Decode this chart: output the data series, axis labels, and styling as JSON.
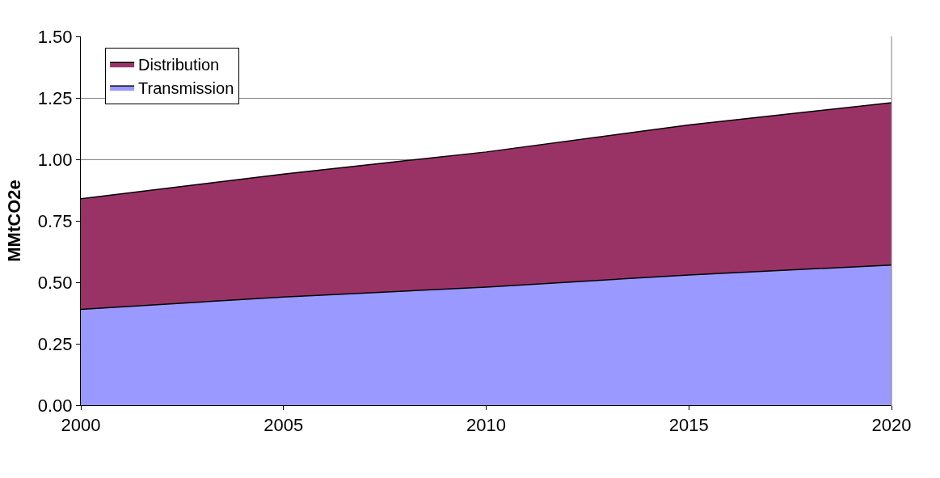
{
  "chart_data": {
    "type": "area",
    "stacked": true,
    "ylabel": "MMtCO2e",
    "x": [
      2000,
      2005,
      2010,
      2015,
      2020
    ],
    "series": [
      {
        "name": "Transmission",
        "color": "#9999ff",
        "values": [
          0.39,
          0.44,
          0.48,
          0.53,
          0.57
        ]
      },
      {
        "name": "Distribution",
        "color": "#993366",
        "values": [
          0.45,
          0.5,
          0.55,
          0.61,
          0.66
        ]
      }
    ],
    "xlim": [
      2000,
      2020
    ],
    "xticks": [
      2000,
      2005,
      2010,
      2015,
      2020
    ],
    "ylim": [
      0,
      1.5
    ],
    "yticks": [
      {
        "value": 0,
        "label": "0.00"
      },
      {
        "value": 0.25,
        "label": "0.25"
      },
      {
        "value": 0.5,
        "label": "0.50"
      },
      {
        "value": 0.75,
        "label": "0.75"
      },
      {
        "value": 1,
        "label": "1.00"
      },
      {
        "value": 1.25,
        "label": "1.25"
      },
      {
        "value": 1.5,
        "label": "1.50"
      }
    ],
    "grid": "y",
    "legend": "top left"
  }
}
